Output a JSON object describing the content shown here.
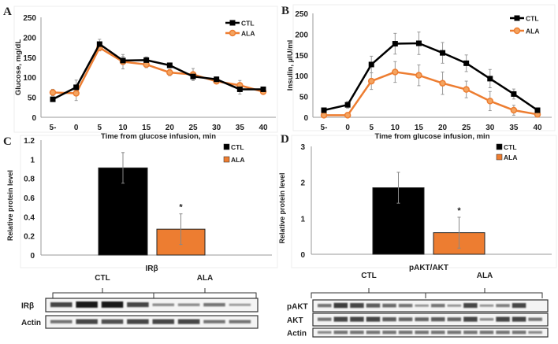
{
  "panels": {
    "a": "A",
    "b": "B",
    "c": "C",
    "d": "D"
  },
  "colors": {
    "ctl": "#000000",
    "ala": "#ed7d31"
  },
  "chart_data": [
    {
      "panel": "A",
      "type": "line",
      "x": [
        "5-",
        "0",
        "5",
        "10",
        "15",
        "20",
        "25",
        "30",
        "35",
        "40"
      ],
      "xlabel": "Time from glucose infusion, min",
      "ylabel": "Glucose, mg/dL",
      "ylim": [
        0,
        250
      ],
      "yticks": [
        0,
        50,
        100,
        150,
        200,
        250
      ],
      "legend": "top-right",
      "series": [
        {
          "name": "CTL",
          "marker": "square",
          "values": [
            45,
            75,
            183,
            142,
            143,
            130,
            102,
            95,
            70,
            70
          ],
          "err": [
            5,
            18,
            12,
            10,
            8,
            6,
            10,
            6,
            12,
            5
          ]
        },
        {
          "name": "ALA",
          "marker": "circle",
          "values": [
            62,
            60,
            174,
            139,
            132,
            112,
            107,
            90,
            80,
            64
          ],
          "err": [
            8,
            18,
            8,
            18,
            8,
            8,
            15,
            6,
            12,
            5
          ]
        }
      ]
    },
    {
      "panel": "B",
      "type": "line",
      "x": [
        "5-",
        "0",
        "5",
        "10",
        "15",
        "20",
        "25",
        "30",
        "35",
        "40"
      ],
      "xlabel": "Time from glucose infusion, min",
      "ylabel": "Insulin, µIU/ml",
      "ylim": [
        0,
        250
      ],
      "yticks": [
        0,
        50,
        100,
        150,
        200,
        250
      ],
      "legend": "top-right",
      "series": [
        {
          "name": "CTL",
          "marker": "square",
          "values": [
            17,
            30,
            127,
            177,
            178,
            155,
            130,
            93,
            56,
            17
          ],
          "err": [
            4,
            8,
            20,
            25,
            27,
            25,
            20,
            22,
            12,
            4
          ]
        },
        {
          "name": "ALA",
          "marker": "circle",
          "values": [
            5,
            5,
            87,
            109,
            101,
            82,
            67,
            39,
            17,
            7
          ],
          "err": [
            2,
            3,
            20,
            25,
            25,
            27,
            20,
            23,
            12,
            3
          ]
        }
      ]
    },
    {
      "panel": "C",
      "type": "bar",
      "categories": [
        "IRβ"
      ],
      "ylabel": "Relative protein level",
      "ylim": [
        0,
        1.2
      ],
      "yticks": [
        "0",
        "0.2",
        "0.4",
        "0.6",
        "0.8",
        "1",
        "1.2"
      ],
      "legend": "top-right",
      "series": [
        {
          "name": "CTL",
          "values": [
            0.91
          ],
          "err": [
            0.16
          ]
        },
        {
          "name": "ALA",
          "values": [
            0.27
          ],
          "err": [
            0.16
          ],
          "annotation": "*"
        }
      ]
    },
    {
      "panel": "D",
      "type": "bar",
      "categories": [
        "pAKT/AKT"
      ],
      "ylabel": "Relative protein level",
      "ylim": [
        0,
        3
      ],
      "yticks": [
        "0",
        "1",
        "2",
        "3"
      ],
      "legend": "top-right",
      "series": [
        {
          "name": "CTL",
          "values": [
            1.85
          ],
          "err": [
            0.43
          ]
        },
        {
          "name": "ALA",
          "values": [
            0.6
          ],
          "err": [
            0.43
          ],
          "annotation": "*"
        }
      ]
    }
  ],
  "blots": {
    "left": {
      "groups": [
        "CTL",
        "ALA"
      ],
      "rows": [
        "IRβ",
        "Actin"
      ]
    },
    "right": {
      "groups": [
        "CTL",
        "ALA"
      ],
      "rows": [
        "pAKT",
        "AKT",
        "Actin"
      ]
    }
  }
}
